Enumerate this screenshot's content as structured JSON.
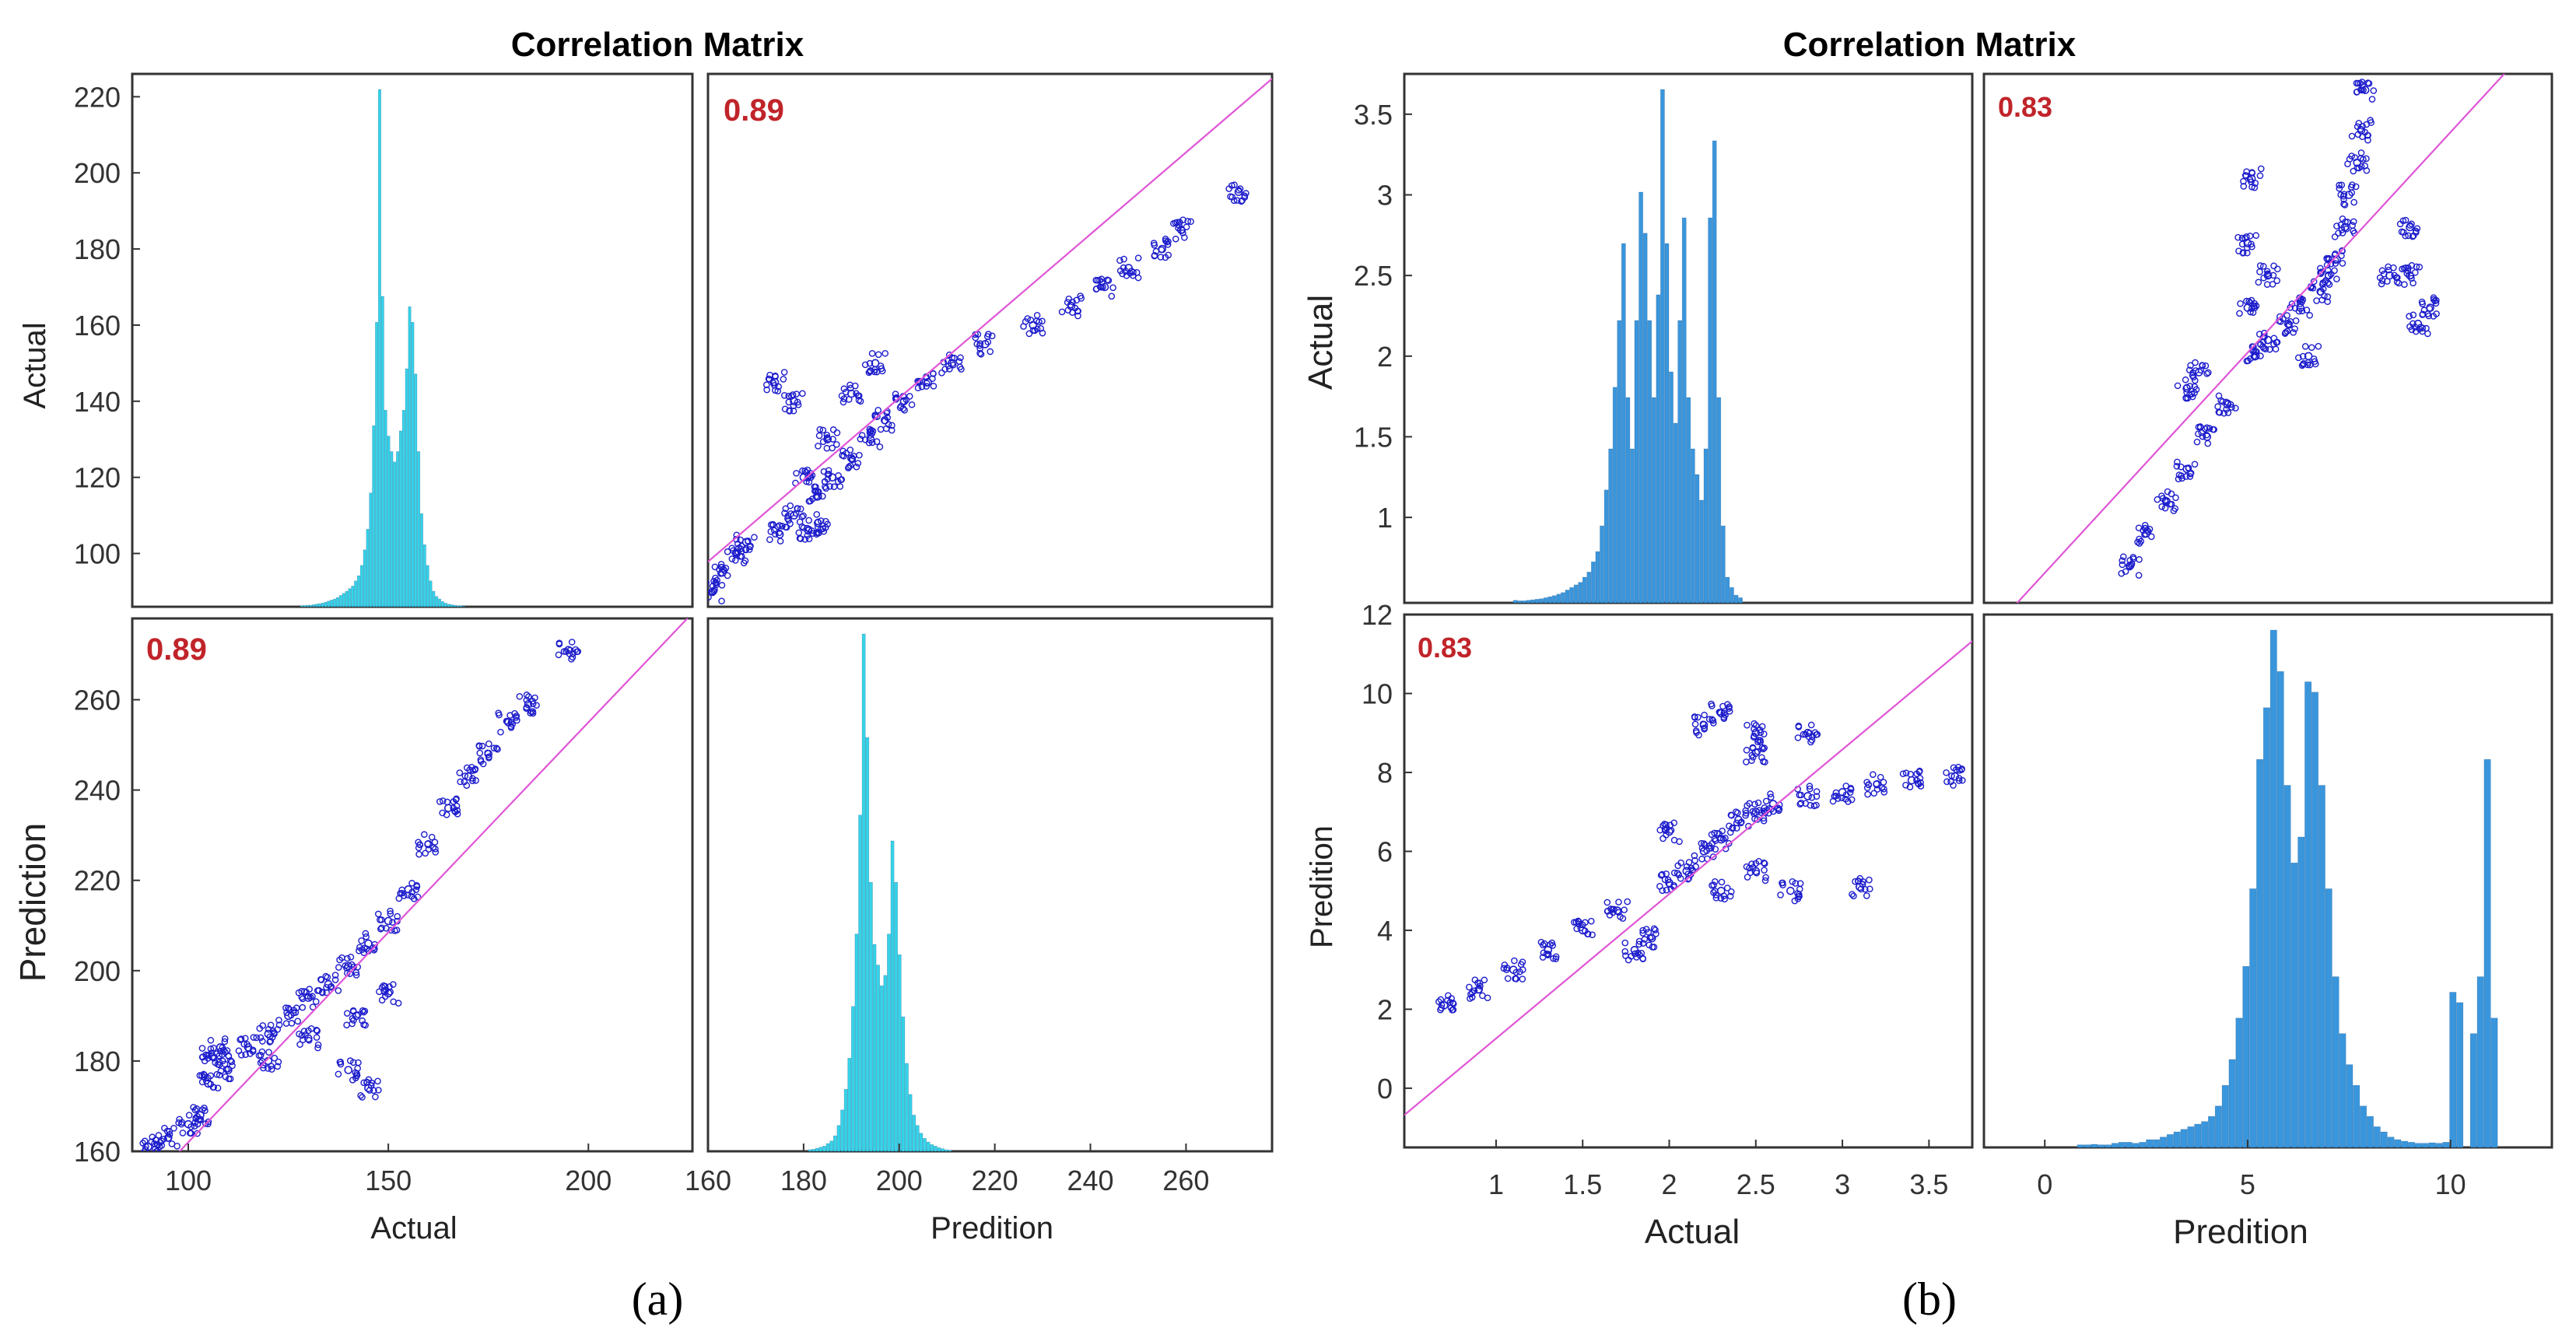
{
  "colors": {
    "hist_a": "#35d3e8",
    "hist_b": "#3a96dc",
    "scatter": "#1d1dcc",
    "fit_line": "#e055d6",
    "corr_text": "#c0242a",
    "frame": "#333333"
  },
  "chart_data": [
    {
      "type": "scatter-matrix",
      "title": "Correlation Matrix",
      "caption": "(a)",
      "variables": [
        "Actual",
        "Prediction"
      ],
      "x_labels": [
        "Actual",
        "Predition"
      ],
      "y_labels": [
        "Actual",
        "Prediction"
      ],
      "correlation": "0.89",
      "actual_axis": {
        "range": [
          86,
          226
        ],
        "ticks": [
          "100",
          "120",
          "140",
          "160",
          "180",
          "200",
          "220"
        ],
        "x_range": [
          86,
          226
        ],
        "x_ticks": [
          "100",
          "150",
          "200"
        ]
      },
      "prediction_axis": {
        "range": [
          160,
          278
        ],
        "ticks": [
          "160",
          "180",
          "200",
          "220",
          "240",
          "260"
        ]
      },
      "hist_actual": {
        "bin_start": 128,
        "bin_width": 0.75,
        "counts": [
          0.2,
          0.2,
          0.3,
          0.3,
          0.4,
          0.5,
          0.6,
          0.7,
          0.9,
          1.1,
          1.3,
          1.5,
          1.8,
          2.2,
          2.6,
          3,
          3.5,
          4,
          5,
          6,
          8,
          11,
          15,
          22,
          35,
          55,
          100,
          60,
          38,
          33,
          30,
          28,
          30,
          34,
          38,
          46,
          58,
          55,
          45,
          30,
          18,
          12,
          8,
          5,
          3,
          2,
          1.5,
          1,
          0.7,
          0.5,
          0.4,
          0.3,
          0.2,
          0.2,
          0.1
        ]
      },
      "hist_prediction": {
        "bin_start": 181,
        "bin_width": 0.75,
        "counts": [
          0.3,
          0.4,
          0.6,
          0.8,
          1,
          1.5,
          2,
          3,
          5,
          8,
          12,
          18,
          28,
          42,
          65,
          100,
          80,
          52,
          40,
          36,
          32,
          34,
          42,
          60,
          52,
          38,
          26,
          17,
          11,
          7,
          5,
          3.5,
          2.5,
          1.8,
          1.3,
          1,
          0.7,
          0.5,
          0.3,
          0.2
        ]
      },
      "fit_line": {
        "slope": 0.93,
        "intercept": 69
      },
      "scatter_actual_vs_prediction": [
        [
          90,
          161
        ],
        [
          95,
          163
        ],
        [
          100,
          166
        ],
        [
          103,
          168
        ],
        [
          105,
          175
        ],
        [
          106,
          181
        ],
        [
          108,
          183
        ],
        [
          110,
          178
        ],
        [
          115,
          183
        ],
        [
          120,
          186
        ],
        [
          125,
          190
        ],
        [
          130,
          194
        ],
        [
          135,
          197
        ],
        [
          140,
          201
        ],
        [
          145,
          206
        ],
        [
          150,
          211
        ],
        [
          155,
          218
        ],
        [
          160,
          228
        ],
        [
          165,
          236
        ],
        [
          170,
          243
        ],
        [
          175,
          248
        ],
        [
          180,
          255
        ],
        [
          185,
          259
        ],
        [
          195,
          271
        ],
        [
          120,
          180
        ],
        [
          130,
          185
        ],
        [
          140,
          178
        ],
        [
          145,
          174
        ],
        [
          142,
          190
        ],
        [
          150,
          195
        ]
      ]
    },
    {
      "type": "scatter-matrix",
      "title": "Correlation Matrix",
      "caption": "(b)",
      "variables": [
        "Actual",
        "Predition"
      ],
      "x_labels": [
        "Actual",
        "Predition"
      ],
      "y_labels": [
        "Actual",
        "Predition"
      ],
      "correlation": "0.83",
      "actual_axis": {
        "range": [
          0.47,
          3.75
        ],
        "ticks": [
          "1",
          "1.5",
          "2",
          "2.5",
          "3",
          "3.5"
        ],
        "x_range": [
          0.47,
          3.75
        ],
        "x_ticks": [
          "1",
          "1.5",
          "2",
          "2.5",
          "3",
          "3.5"
        ]
      },
      "prediction_axis": {
        "range": [
          -1.5,
          12
        ],
        "ticks": [
          "0",
          "2",
          "4",
          "6",
          "8",
          "10",
          "12"
        ],
        "x_range": [
          -1.5,
          12.5
        ],
        "x_ticks": [
          "0",
          "5",
          "10"
        ]
      },
      "hist_actual": {
        "bin_start": 1.1,
        "bin_width": 0.025,
        "counts": [
          0.5,
          0.4,
          0.4,
          0.5,
          0.6,
          0.7,
          0.8,
          1,
          1.2,
          1.4,
          1.7,
          2,
          2.5,
          3,
          3.5,
          4,
          5,
          6,
          8,
          10,
          15,
          22,
          30,
          42,
          55,
          70,
          40,
          30,
          55,
          80,
          72,
          55,
          40,
          60,
          100,
          70,
          45,
          35,
          55,
          75,
          40,
          30,
          25,
          20,
          30,
          75,
          90,
          40,
          15,
          5,
          3,
          1.5,
          1
        ]
      },
      "hist_prediction": {
        "bin_start": 0.8,
        "bin_width": 0.17,
        "counts": [
          0.5,
          0.5,
          0.6,
          0.5,
          0.5,
          0.8,
          1,
          1,
          0.8,
          1,
          1.5,
          1.5,
          2,
          2.5,
          3,
          3.5,
          4,
          4.5,
          5,
          6,
          8,
          12,
          17,
          25,
          35,
          50,
          75,
          85,
          100,
          92,
          70,
          55,
          60,
          90,
          88,
          70,
          50,
          33,
          22,
          16,
          12,
          8,
          6,
          4,
          3,
          2,
          1.5,
          1.2,
          1,
          0.8,
          0.8,
          0.9,
          0.8,
          1,
          30,
          28,
          0,
          22,
          33,
          75,
          25
        ]
      },
      "fit_line": {
        "slope": 3.66,
        "intercept": -2.4
      },
      "scatter_actual_vs_prediction": [
        [
          0.7,
          2.1
        ],
        [
          0.9,
          2.5
        ],
        [
          1.1,
          3
        ],
        [
          1.3,
          3.5
        ],
        [
          1.5,
          4
        ],
        [
          1.7,
          4.5
        ],
        [
          1.8,
          3.5
        ],
        [
          1.9,
          3.8
        ],
        [
          2,
          5.2
        ],
        [
          2.1,
          5.5
        ],
        [
          2.2,
          6
        ],
        [
          2.3,
          6.3
        ],
        [
          2.4,
          6.8
        ],
        [
          2.5,
          7
        ],
        [
          2.6,
          7.2
        ],
        [
          2.8,
          7.4
        ],
        [
          3,
          7.5
        ],
        [
          3.2,
          7.7
        ],
        [
          3.4,
          7.8
        ],
        [
          3.65,
          7.9
        ],
        [
          2.2,
          9.2
        ],
        [
          2.3,
          9.5
        ],
        [
          2.5,
          9
        ],
        [
          2.8,
          9
        ],
        [
          2.3,
          5
        ],
        [
          2.5,
          5.5
        ],
        [
          2.7,
          5
        ],
        [
          3.1,
          5.1
        ],
        [
          2.5,
          8.5
        ],
        [
          2,
          6.5
        ]
      ]
    }
  ]
}
